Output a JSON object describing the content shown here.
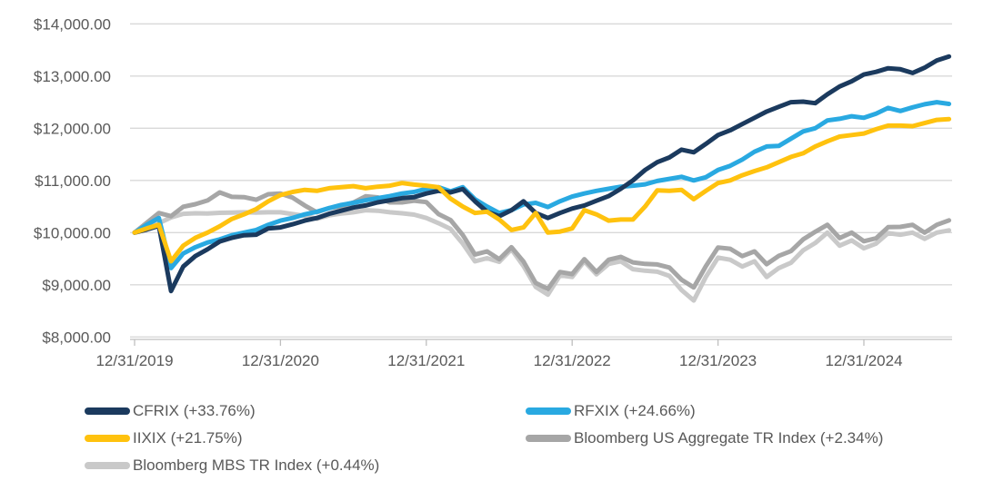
{
  "chart_data": {
    "type": "line",
    "title": "",
    "xlabel": "",
    "ylabel": "",
    "x_tick_labels": [
      "12/31/2019",
      "12/31/2020",
      "12/31/2021",
      "12/31/2022",
      "12/31/2023",
      "12/31/2024"
    ],
    "y_tick_labels": [
      "$8,000.00",
      "$9,000.00",
      "$10,000.00",
      "$11,000.00",
      "$12,000.00",
      "$13,000.00",
      "$14,000.00"
    ],
    "ylim": [
      8000,
      14000
    ],
    "y_step": 1000,
    "grid": "horizontal",
    "legend_position": "bottom",
    "x_start_date": "12/31/2019",
    "x_frequency": "monthly",
    "colors": {
      "axis_text": "#595959",
      "axis_line": "#BFBFBF",
      "gridline": "#D9D9D9"
    },
    "series": [
      {
        "name": "CFRIX",
        "label": "CFRIX (+33.76%)",
        "return_pct": 33.76,
        "color": "#1B3A5E",
        "values": [
          10000,
          10060,
          10130,
          8880,
          9350,
          9550,
          9680,
          9830,
          9900,
          9950,
          9960,
          10080,
          10100,
          10160,
          10230,
          10280,
          10360,
          10420,
          10480,
          10520,
          10580,
          10620,
          10660,
          10680,
          10750,
          10800,
          10770,
          10835,
          10600,
          10400,
          10315,
          10430,
          10600,
          10375,
          10280,
          10375,
          10460,
          10520,
          10610,
          10700,
          10840,
          11000,
          11200,
          11350,
          11440,
          11590,
          11540,
          11700,
          11870,
          11960,
          12080,
          12200,
          12320,
          12410,
          12500,
          12510,
          12480,
          12650,
          12800,
          12900,
          13030,
          13080,
          13150,
          13130,
          13060,
          13160,
          13300,
          13376
        ]
      },
      {
        "name": "RFXIX",
        "label": "RFXIX (+24.66%)",
        "return_pct": 24.66,
        "color": "#29A9E1",
        "values": [
          10000,
          10150,
          10280,
          9320,
          9600,
          9720,
          9810,
          9870,
          9950,
          10000,
          10050,
          10150,
          10230,
          10280,
          10350,
          10400,
          10470,
          10530,
          10570,
          10620,
          10660,
          10700,
          10750,
          10780,
          10840,
          10870,
          10790,
          10870,
          10640,
          10500,
          10375,
          10430,
          10540,
          10570,
          10490,
          10600,
          10690,
          10750,
          10800,
          10840,
          10880,
          10900,
          10925,
          10990,
          11030,
          11070,
          11000,
          11060,
          11200,
          11280,
          11400,
          11550,
          11650,
          11660,
          11800,
          11940,
          12000,
          12150,
          12180,
          12230,
          12200,
          12280,
          12390,
          12330,
          12400,
          12460,
          12500,
          12466
        ]
      },
      {
        "name": "IIXIX",
        "label": "IIXIX (+21.75%)",
        "return_pct": 21.75,
        "color": "#FFC20E",
        "values": [
          10000,
          10080,
          10150,
          9450,
          9750,
          9900,
          10000,
          10120,
          10260,
          10350,
          10450,
          10600,
          10720,
          10780,
          10820,
          10800,
          10850,
          10870,
          10890,
          10850,
          10880,
          10900,
          10950,
          10920,
          10900,
          10870,
          10650,
          10500,
          10375,
          10400,
          10250,
          10050,
          10100,
          10375,
          10000,
          10020,
          10080,
          10430,
          10350,
          10230,
          10250,
          10250,
          10500,
          10810,
          10800,
          10820,
          10640,
          10800,
          10950,
          11000,
          11100,
          11180,
          11250,
          11350,
          11450,
          11520,
          11650,
          11750,
          11840,
          11870,
          11900,
          11980,
          12050,
          12050,
          12040,
          12100,
          12160,
          12175
        ]
      },
      {
        "name": "Bloomberg US Aggregate TR Index",
        "label": "Bloomberg US Aggregate TR Index (+2.34%)",
        "return_pct": 2.34,
        "color": "#A6A6A6",
        "values": [
          10000,
          10190,
          10375,
          10315,
          10495,
          10545,
          10615,
          10770,
          10685,
          10680,
          10630,
          10735,
          10750,
          10670,
          10520,
          10390,
          10470,
          10505,
          10575,
          10695,
          10675,
          10580,
          10580,
          10610,
          10585,
          10355,
          10240,
          9955,
          9580,
          9640,
          9490,
          9720,
          9445,
          9035,
          8920,
          9245,
          9205,
          9490,
          9245,
          9480,
          9535,
          9430,
          9400,
          9390,
          9330,
          9095,
          8950,
          9355,
          9715,
          9690,
          9550,
          9640,
          9395,
          9555,
          9645,
          9870,
          10015,
          10150,
          9895,
          10000,
          9835,
          9890,
          10105,
          10110,
          10150,
          10000,
          10150,
          10234
        ]
      },
      {
        "name": "Bloomberg MBS TR Index",
        "label": "Bloomberg MBS TR Index (+0.44%)",
        "return_pct": 0.44,
        "color": "#C9C9C9",
        "values": [
          10000,
          10070,
          10180,
          10290,
          10360,
          10370,
          10365,
          10380,
          10385,
          10390,
          10385,
          10390,
          10390,
          10355,
          10320,
          10265,
          10330,
          10365,
          10390,
          10430,
          10420,
          10390,
          10370,
          10345,
          10280,
          10180,
          10070,
          9790,
          9450,
          9510,
          9440,
          9680,
          9360,
          8960,
          8810,
          9180,
          9150,
          9450,
          9200,
          9400,
          9450,
          9300,
          9270,
          9250,
          9170,
          8900,
          8700,
          9150,
          9520,
          9480,
          9350,
          9450,
          9150,
          9320,
          9420,
          9660,
          9800,
          10000,
          9750,
          9850,
          9700,
          9790,
          9990,
          9960,
          10000,
          9880,
          10000,
          10044
        ]
      }
    ],
    "draw_order": [
      4,
      3,
      1,
      0,
      2
    ],
    "legend_columns": [
      [
        0,
        2,
        4
      ],
      [
        1,
        3
      ]
    ]
  }
}
